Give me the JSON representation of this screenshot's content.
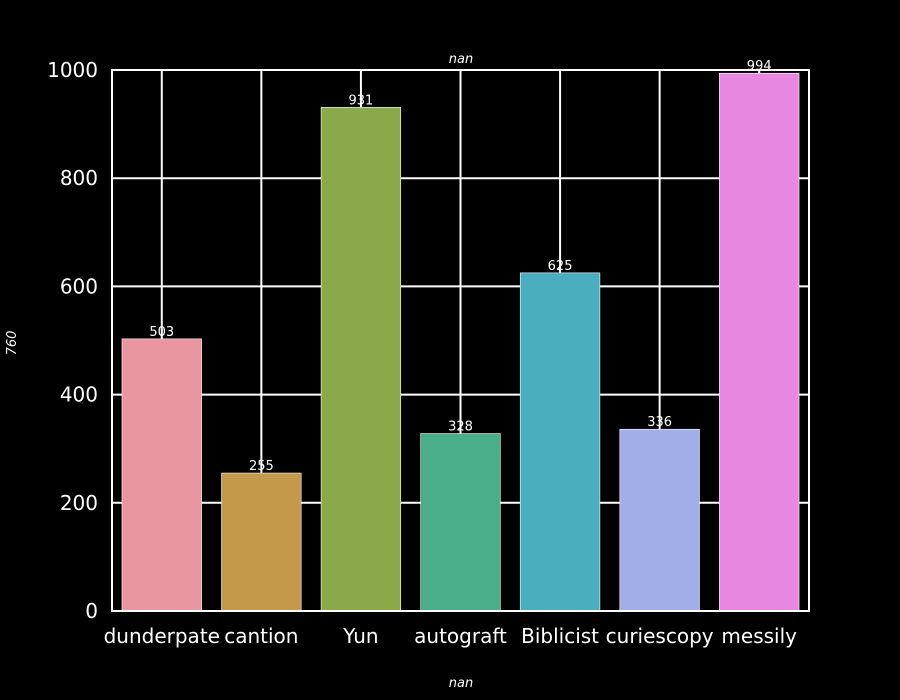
{
  "chart_data": {
    "type": "bar",
    "title": "nan",
    "xlabel": "nan",
    "ylabel": "760",
    "categories": [
      "dunderpate",
      "cantion",
      "Yun",
      "autograft",
      "Biblicist",
      "curiescopy",
      "messily"
    ],
    "values": [
      503,
      255,
      931,
      328,
      625,
      336,
      994
    ],
    "ylim": [
      0,
      1000
    ],
    "yticks": [
      0,
      200,
      400,
      600,
      800,
      1000
    ],
    "grid": true,
    "legend": "none",
    "colors": [
      "#e8959f",
      "#c49a4a",
      "#8aaa4a",
      "#4aae8a",
      "#4aaebf",
      "#a1aee8",
      "#e887e0"
    ],
    "background": "#000000",
    "foreground": "#ffffff"
  }
}
